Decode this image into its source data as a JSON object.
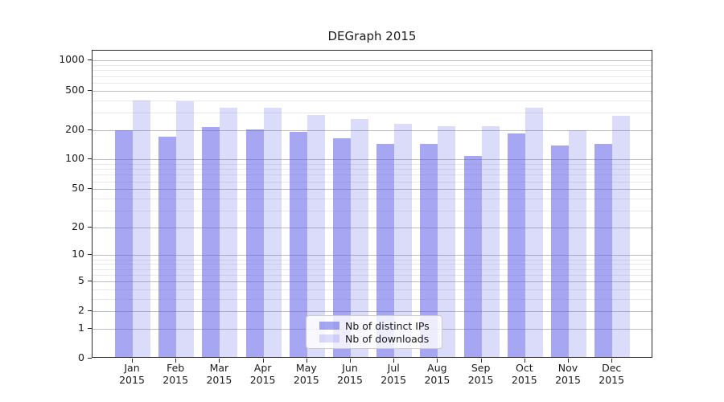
{
  "chart_data": {
    "type": "bar",
    "title": "DEGraph 2015",
    "year_label": "2015",
    "categories": [
      "Jan",
      "Feb",
      "Mar",
      "Apr",
      "May",
      "Jun",
      "Jul",
      "Aug",
      "Sep",
      "Oct",
      "Nov",
      "Dec"
    ],
    "series": [
      {
        "name": "Nb of distinct IPs",
        "color": "rgba(92,92,231,0.55)",
        "values": [
          200,
          170,
          212,
          202,
          190,
          165,
          145,
          144,
          108,
          183,
          138,
          144
        ]
      },
      {
        "name": "Nb of downloads",
        "color": "rgba(92,92,231,0.22)",
        "values": [
          393,
          386,
          332,
          337,
          282,
          257,
          231,
          218,
          217,
          334,
          200,
          278
        ]
      }
    ],
    "yscale": "log1p",
    "ylim": [
      0,
      1260
    ],
    "yticks": [
      {
        "value": 1000,
        "label": "1000"
      },
      {
        "value": 500,
        "label": "500"
      },
      {
        "value": 200,
        "label": "200"
      },
      {
        "value": 100,
        "label": "100"
      },
      {
        "value": 50,
        "label": "50"
      },
      {
        "value": 20,
        "label": "20"
      },
      {
        "value": 10,
        "label": "10"
      },
      {
        "value": 5,
        "label": "5"
      },
      {
        "value": 2,
        "label": "2"
      },
      {
        "value": 1,
        "label": "1"
      },
      {
        "value": 0,
        "label": "0"
      }
    ],
    "minor_gridlines": [
      3,
      4,
      6,
      7,
      8,
      9,
      30,
      40,
      60,
      70,
      80,
      90,
      300,
      400,
      600,
      700,
      800,
      900
    ],
    "grid": {
      "major_color": "#bdbdbd",
      "minor_color": "#e9e9e9"
    },
    "legend_position": "lower center",
    "frame_color": "#2b2b2b"
  }
}
